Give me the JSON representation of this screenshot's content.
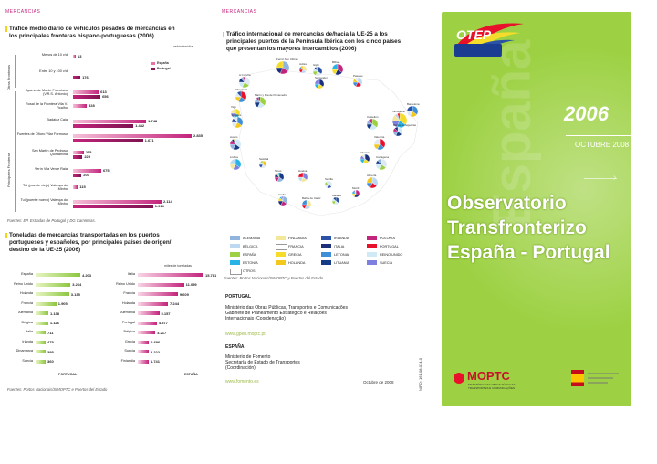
{
  "panel1": {
    "section": "MERCANCIAS",
    "title_line1": "Tráfico medio diario de vehículos pesados de mercancías en",
    "title_line2": "los principales fronteras hispano-portuguesas (2006)",
    "units": "vehículos/día",
    "legend": [
      "España",
      "Portugal"
    ],
    "group_labels": [
      "Otras Fronteras",
      "Principales Fronteras"
    ],
    "rows": [
      {
        "label": "Menos de 10 v/d",
        "es": 13,
        "pt": 0
      },
      {
        "label": "Entre 10 y 100 v/d",
        "es": 0,
        "pt": 176
      },
      {
        "label": "Ayamonte Monte Francisco (V.R.S. Antonio)",
        "es": 613,
        "pt": 656
      },
      {
        "label": "Rosal de la Frontera Vila V. Ficalho",
        "es": 328,
        "pt": 0
      },
      {
        "label": "Badajoz Caia",
        "es": 1748,
        "pt": 1442
      },
      {
        "label": "Fuentes de Oñoro Vilar Formoso",
        "es": 2835,
        "pt": 1671
      },
      {
        "label": "San Martín de Pedroso Quintanilha",
        "es": 255,
        "pt": 225
      },
      {
        "label": "Verín Vila Verde Raia",
        "es": 675,
        "pt": 203
      },
      {
        "label": "Tui (puente viejo) Valença do Minho",
        "es": 115,
        "pt": 0
      },
      {
        "label": "Tui (puente nuevo) Valença do Minho",
        "es": 2114,
        "pt": 1914
      }
    ],
    "value_labels": [
      "13",
      "176",
      "613",
      "656",
      "328",
      "1.748",
      "1.442",
      "2.835",
      "1.671",
      "255",
      "225",
      "675",
      "203",
      "115",
      "2.114",
      "1.914"
    ],
    "source": "Fuentes: EP. Estradas de Portugal y DG Carreteras."
  },
  "panel1b": {
    "title_line1": "Toneladas de mercancías transportadas en los puertos",
    "title_line2": "portugueses y españoles, por principales países de origen/",
    "title_line3": "destino de la UE-25 (2006)",
    "units": "miles de toneladas",
    "left_country_label": "PORTUGAL",
    "right_country_label": "ESPAÑA",
    "portugal": [
      {
        "country": "España",
        "value": 4203,
        "label": "4.203"
      },
      {
        "country": "Reino Unido",
        "value": 3264,
        "label": "3.264"
      },
      {
        "country": "Holanda",
        "value": 3135,
        "label": "3.135"
      },
      {
        "country": "Francia",
        "value": 1905,
        "label": "1.905"
      },
      {
        "country": "Alemania",
        "value": 1138,
        "label": "1.138"
      },
      {
        "country": "Bélgica",
        "value": 1126,
        "label": "1.126"
      },
      {
        "country": "Italia",
        "value": 711,
        "label": "711"
      },
      {
        "country": "Irlanda",
        "value": 475,
        "label": "475"
      },
      {
        "country": "Dinamarca",
        "value": 395,
        "label": "395"
      },
      {
        "country": "Suecia",
        "value": 360,
        "label": "360"
      }
    ],
    "espana": [
      {
        "country": "Italia",
        "value": 15781,
        "label": "15.781"
      },
      {
        "country": "Reino Unido",
        "value": 11099,
        "label": "11.099"
      },
      {
        "country": "Francia",
        "value": 9609,
        "label": "9.609"
      },
      {
        "country": "Holanda",
        "value": 7244,
        "label": "7.244"
      },
      {
        "country": "Alemania",
        "value": 5157,
        "label": "5.157"
      },
      {
        "country": "Portugal",
        "value": 4577,
        "label": "4.577"
      },
      {
        "country": "Bélgica",
        "value": 4217,
        "label": "4.217"
      },
      {
        "country": "Grecia",
        "value": 2686,
        "label": "2.686"
      },
      {
        "country": "Suecia",
        "value": 2222,
        "label": "2.222"
      },
      {
        "country": "Finlandia",
        "value": 1741,
        "label": "1.741"
      }
    ],
    "source": "Fuentes: Portos Nacionais/SIMOPTC e Puertos del Estado"
  },
  "panel2": {
    "section": "MERCANCIAS",
    "title_line1": "Tráfico internacional de mercancías de/hacia la UE-25 a los",
    "title_line2": "principales puertos de la Península Ibérica con los cinco países",
    "title_line3": "que presentan los mayores intercambios (2006)",
    "ports": [
      "Ferrol San Cibrao",
      "Avilés",
      "Gijón",
      "Bilbao",
      "Pasajes",
      "A Coruña",
      "Santander",
      "Vilagarcía",
      "Marín y Ría de Pontevedra",
      "Vigo",
      "Leixões",
      "Aveiro",
      "Lisboa",
      "Setúbal",
      "Sines",
      "Huelva",
      "Sevilla",
      "Cádiz",
      "Bahía de Cádiz",
      "Málaga",
      "Motril",
      "Almería",
      "Cartagena",
      "Alicante",
      "Valencia",
      "Castellón",
      "Tarragona",
      "Barcelona",
      "Bahía de Algeciras"
    ],
    "legend": [
      {
        "name": "ALEMANIA",
        "color": "#8fb4de"
      },
      {
        "name": "FINLANDIA",
        "color": "#f3e89a"
      },
      {
        "name": "IRLANDA",
        "color": "#2b52a6"
      },
      {
        "name": "POLONIA",
        "color": "#c3247c"
      },
      {
        "name": "BÉLGICA",
        "color": "#bcd9f1"
      },
      {
        "name": "FRANCIA",
        "color": "#ffffff"
      },
      {
        "name": "ITALIA",
        "color": "#1b2f7a"
      },
      {
        "name": "PORTUGAL",
        "color": "#e8102a"
      },
      {
        "name": "ESPAÑA",
        "color": "#9dd143"
      },
      {
        "name": "GRECIA",
        "color": "#f5dc2a"
      },
      {
        "name": "LETONIA",
        "color": "#3f8fd8"
      },
      {
        "name": "REINO UNIDO",
        "color": "#cfe9f7"
      },
      {
        "name": "ESTONIA",
        "color": "#27b3e6"
      },
      {
        "name": "HOLANDA",
        "color": "#f2c81d"
      },
      {
        "name": "LITUANIA",
        "color": "#163b86"
      },
      {
        "name": "SUECIA",
        "color": "#7f7fe0"
      },
      {
        "name": "OTROS",
        "color": "#ffffff"
      }
    ],
    "source": "Fuentes: Portos Nacionais/SIMOPTC y Puertos del Estado",
    "portugal_head": "PORTUGAL",
    "portugal_lines": [
      "Ministério das Obras Públicas, Transportes e Comunicações",
      "Gabinete de Planeamento Estratégico e Relações",
      "Internacionais (Coordenação)"
    ],
    "portugal_url": "www.gperi.moptc.pt",
    "espana_head": "ESPAÑA",
    "espana_lines": [
      "Ministerio de Fomento",
      "Secretaría de Estado de Transportes",
      "(Coordinación)"
    ],
    "espana_url": "www.fomento.es",
    "date": "Octubre de 2008",
    "nipo": "NIPO: 161-08-074-0"
  },
  "cover": {
    "logo": "OTEP",
    "year": "2006",
    "date": "OCTUBRE 2008",
    "watermark": "España",
    "title_line1": "Observatorio",
    "title_line2": "Transfronterizo",
    "title_line3": "España - Portugal",
    "ministry": "MOPTC",
    "ministry_sub1": "MINISTÉRIO DAS OBRAS PÚBLICAS,",
    "ministry_sub2": "TRANSPORTES E COMUNICAÇÕES",
    "green": "#9dd143"
  }
}
